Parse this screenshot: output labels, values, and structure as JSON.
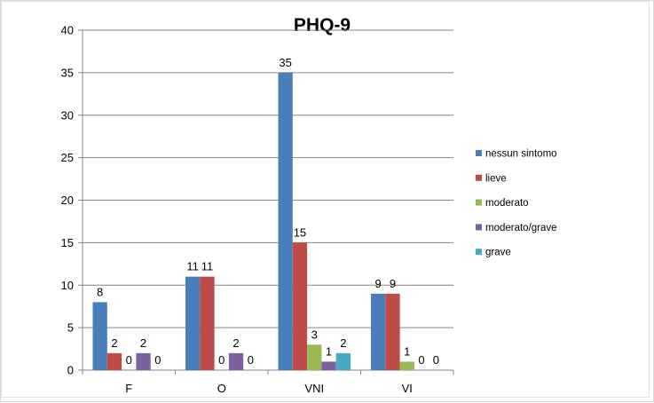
{
  "chart_data": {
    "type": "bar",
    "title": "PHQ-9",
    "xlabel": "",
    "ylabel": "",
    "categories": [
      "F",
      "O",
      "VNI",
      "VI"
    ],
    "ylim": [
      0,
      40
    ],
    "yticks": [
      0,
      5,
      10,
      15,
      20,
      25,
      30,
      35,
      40
    ],
    "grid": true,
    "legend_position": "right",
    "series": [
      {
        "name": "nessun sintomo",
        "color": "#4a7ebb",
        "values": [
          8,
          11,
          35,
          9
        ],
        "labels": [
          "8",
          "11",
          "35",
          "9"
        ]
      },
      {
        "name": "lieve",
        "color": "#be4b48",
        "values": [
          2,
          11,
          15,
          9
        ],
        "labels": [
          "2",
          "11",
          "15",
          "9"
        ]
      },
      {
        "name": "moderato",
        "color": "#98b954",
        "values": [
          0,
          0,
          3,
          1
        ],
        "labels": [
          "0",
          "0",
          "3",
          "1"
        ]
      },
      {
        "name": "moderato/grave",
        "color": "#7d60a0",
        "values": [
          2,
          2,
          1,
          0
        ],
        "labels": [
          "2",
          "2",
          "1",
          "0"
        ]
      },
      {
        "name": "grave",
        "color": "#46aac5",
        "values": [
          0,
          0,
          2,
          0
        ],
        "labels": [
          "0",
          "0",
          "2",
          "0"
        ]
      }
    ]
  }
}
